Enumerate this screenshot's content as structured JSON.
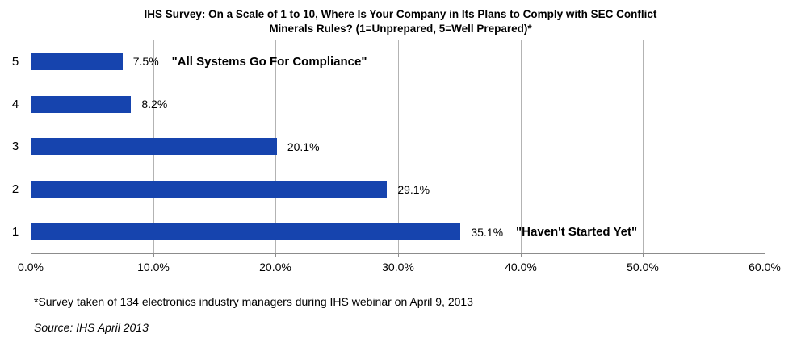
{
  "header": {
    "title_lines": [
      "IHS Survey: On a Scale of 1 to 10, Where Is Your Company in Its Plans to Comply with SEC Conflict",
      "Minerals Rules? (1=Unprepared, 5=Well Prepared)*"
    ]
  },
  "chart_data": {
    "type": "bar",
    "orientation": "horizontal",
    "title": "IHS Survey: On a Scale of 1 to 10, Where Is Your Company in Its Plans to Comply with SEC Conflict Minerals Rules? (1=Unprepared, 5=Well Prepared)*",
    "categories": [
      "5",
      "4",
      "3",
      "2",
      "1"
    ],
    "values": [
      7.5,
      8.2,
      20.1,
      29.1,
      35.1
    ],
    "data_labels": [
      "7.5%",
      "8.2%",
      "20.1%",
      "29.1%",
      "35.1%"
    ],
    "annotations": [
      {
        "category": "5",
        "text": "\"All Systems Go For Compliance\""
      },
      {
        "category": "1",
        "text": "\"Haven't Started Yet\""
      }
    ],
    "x_ticks": {
      "labels": [
        "0.0%",
        "10.0%",
        "20.0%",
        "30.0%",
        "40.0%",
        "50.0%",
        "60.0%"
      ],
      "values": [
        0,
        10,
        20,
        30,
        40,
        50,
        60
      ]
    },
    "xlim": [
      0,
      60
    ],
    "grid": "vertical",
    "legend": "none",
    "colors": {
      "bar": "#1644AE",
      "gridline": "#B3B3B3",
      "axis": "#8C8C8C"
    }
  },
  "footer": {
    "footnote": "*Survey taken of 134 electronics industry managers during IHS webinar on April 9, 2013",
    "source": "Source: IHS April 2013"
  }
}
